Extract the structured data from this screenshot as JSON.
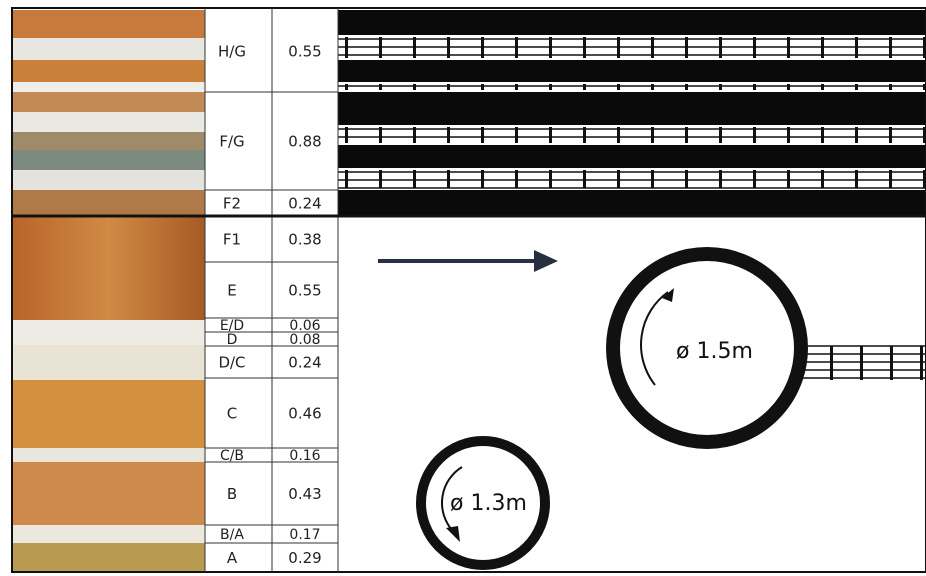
{
  "layers": [
    {
      "label": "H/G",
      "thickness": "0.55"
    },
    {
      "label": "F/G",
      "thickness": "0.88"
    },
    {
      "label": "F2",
      "thickness": "0.24"
    },
    {
      "label": "F1",
      "thickness": "0.38"
    },
    {
      "label": "E",
      "thickness": "0.55"
    },
    {
      "label": "E/D",
      "thickness": "0.06"
    },
    {
      "label": "D",
      "thickness": "0.08"
    },
    {
      "label": "D/C",
      "thickness": "0.24"
    },
    {
      "label": "C",
      "thickness": "0.46"
    },
    {
      "label": "C/B",
      "thickness": "0.16"
    },
    {
      "label": "B",
      "thickness": "0.43"
    },
    {
      "label": "B/A",
      "thickness": "0.17"
    },
    {
      "label": "A",
      "thickness": "0.29"
    }
  ],
  "diameters": {
    "large": "ø 1.5m",
    "small": "ø 1.3m"
  }
}
